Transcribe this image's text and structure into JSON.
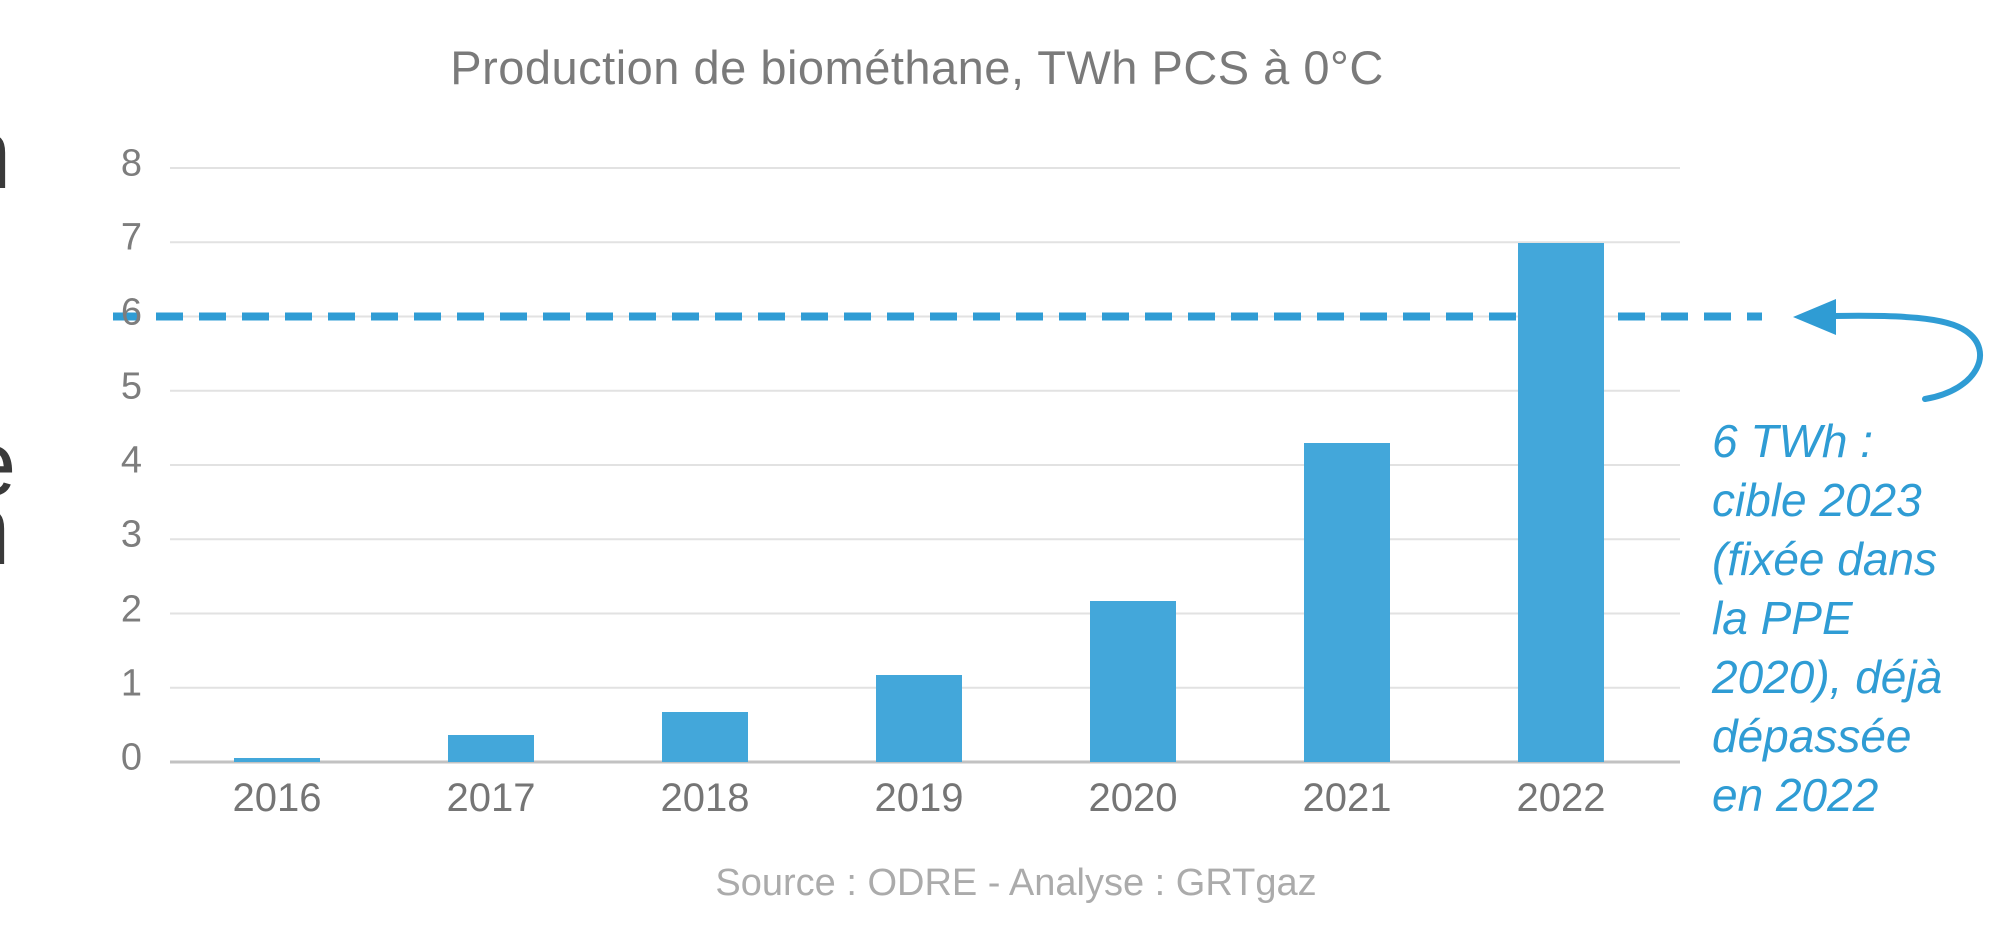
{
  "page": {
    "background": "#ffffff",
    "edge_fragments": {
      "letters": [
        "n",
        "e",
        "n"
      ]
    }
  },
  "chart_data": {
    "type": "bar",
    "title": "Production de biométhane, TWh PCS à 0°C",
    "categories": [
      "2016",
      "2017",
      "2018",
      "2019",
      "2020",
      "2021",
      "2022"
    ],
    "values": [
      0.06,
      0.37,
      0.68,
      1.17,
      2.17,
      4.3,
      6.99
    ],
    "ylabel": "TWh PCS à 0°C",
    "ylim": [
      0,
      8
    ],
    "y_step": 1,
    "grid": true,
    "legend": "none",
    "bar_color": "#43A7DA",
    "grid_color": "#e2e2e2",
    "axis_color": "#c2c2c2",
    "tick_color": "#7d7d7d",
    "title_color": "#7a7a7a",
    "target_line": {
      "value": 6,
      "style": "dashed",
      "color": "#2F9CD4",
      "label": "6 TWh :\ncible 2023\n(fixée dans\nla PPE\n2020), déjà\ndépassée\nen 2022"
    },
    "source": "Source : ODRE - Analyse : GRTgaz"
  }
}
